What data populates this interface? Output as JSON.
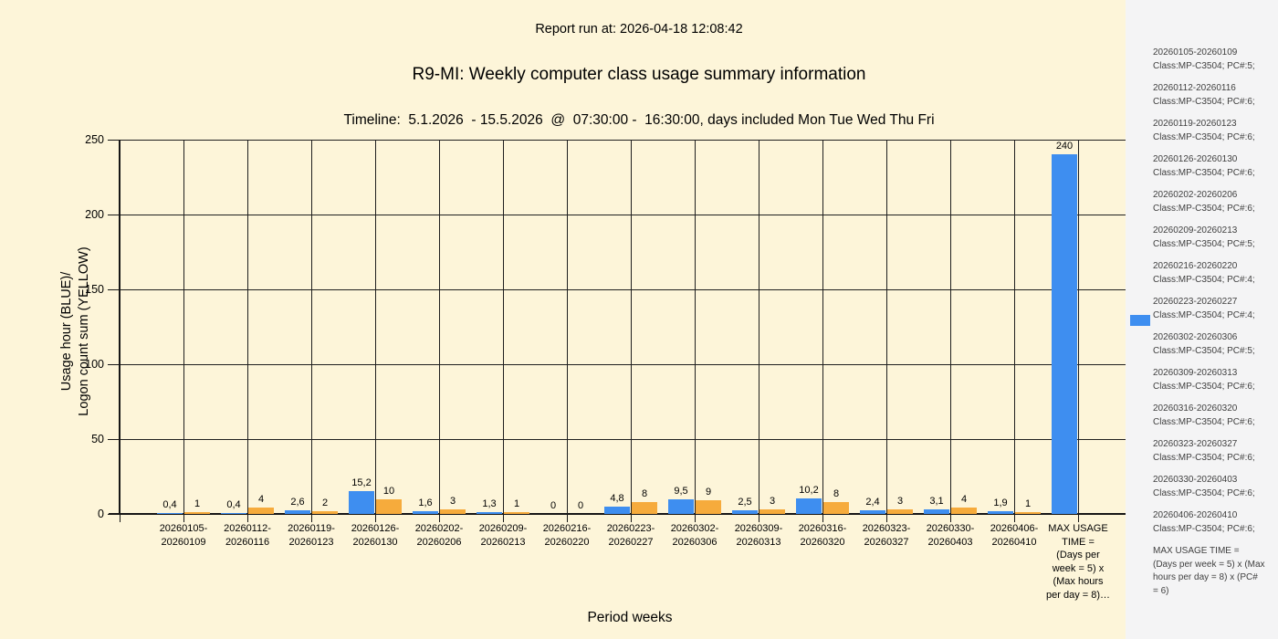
{
  "header": {
    "report_run": "Report run at: 2026-04-18 12:08:42",
    "title": "R9-MI: Weekly computer class usage summary information",
    "timeline": "Timeline:  5.1.2026  - 15.5.2026  @  07:30:00 -  16:30:00, days included Mon Tue Wed Thu Fri"
  },
  "colors": {
    "usage_blue": "#3E8EF0",
    "logon_yellow": "#F6AB3C",
    "chart_background": "#FDF5D9",
    "sidebar_background": "#F4F4F5",
    "gridline": "#1F1F1F"
  },
  "y_axis": {
    "title_line1": "Usage hour (BLUE)/",
    "title_line2": "Logon count sum (YELLOW)",
    "ticks": [
      0,
      50,
      100,
      150,
      200,
      250
    ]
  },
  "x_axis": {
    "title": "Period weeks"
  },
  "chart_data": {
    "type": "bar",
    "title": "R9-MI: Weekly computer class usage summary information",
    "subtitle": "Timeline:  5.1.2026  - 15.5.2026  @  07:30:00 -  16:30:00, days included Mon Tue Wed Thu Fri",
    "xlabel": "Period weeks",
    "ylabel": "Usage hour (BLUE)/ Logon count sum (YELLOW)",
    "ylim": [
      0,
      250
    ],
    "y_ticks": [
      0,
      50,
      100,
      150,
      200,
      250
    ],
    "grid": true,
    "legend_position": "right",
    "series": [
      {
        "name": "Usage hour",
        "color": "#3E8EF0",
        "values": [
          0.4,
          0.4,
          2.6,
          15.2,
          1.6,
          1.3,
          0,
          4.8,
          9.5,
          2.5,
          10.2,
          2.4,
          3.1,
          1.9,
          240
        ]
      },
      {
        "name": "Logon count sum",
        "color": "#F6AB3C",
        "values": [
          1,
          4,
          2,
          10,
          3,
          1,
          0,
          8,
          9,
          3,
          8,
          3,
          4,
          1,
          null
        ]
      }
    ],
    "categories": [
      {
        "range": "20260105-20260109",
        "label_lines": [
          "20260105-",
          "20260109"
        ],
        "usage_hour": 0.4,
        "usage_label": "0,4",
        "logon_count": 1,
        "logon_label": "1"
      },
      {
        "range": "20260112-20260116",
        "label_lines": [
          "20260112-",
          "20260116"
        ],
        "usage_hour": 0.4,
        "usage_label": "0,4",
        "logon_count": 4,
        "logon_label": "4"
      },
      {
        "range": "20260119-20260123",
        "label_lines": [
          "20260119-",
          "20260123"
        ],
        "usage_hour": 2.6,
        "usage_label": "2,6",
        "logon_count": 2,
        "logon_label": "2"
      },
      {
        "range": "20260126-20260130",
        "label_lines": [
          "20260126-",
          "20260130"
        ],
        "usage_hour": 15.2,
        "usage_label": "15,2",
        "logon_count": 10,
        "logon_label": "10"
      },
      {
        "range": "20260202-20260206",
        "label_lines": [
          "20260202-",
          "20260206"
        ],
        "usage_hour": 1.6,
        "usage_label": "1,6",
        "logon_count": 3,
        "logon_label": "3"
      },
      {
        "range": "20260209-20260213",
        "label_lines": [
          "20260209-",
          "20260213"
        ],
        "usage_hour": 1.3,
        "usage_label": "1,3",
        "logon_count": 1,
        "logon_label": "1"
      },
      {
        "range": "20260216-20260220",
        "label_lines": [
          "20260216-",
          "20260220"
        ],
        "usage_hour": 0,
        "usage_label": "0",
        "logon_count": 0,
        "logon_label": "0"
      },
      {
        "range": "20260223-20260227",
        "label_lines": [
          "20260223-",
          "20260227"
        ],
        "usage_hour": 4.8,
        "usage_label": "4,8",
        "logon_count": 8,
        "logon_label": "8"
      },
      {
        "range": "20260302-20260306",
        "label_lines": [
          "20260302-",
          "20260306"
        ],
        "usage_hour": 9.5,
        "usage_label": "9,5",
        "logon_count": 9,
        "logon_label": "9"
      },
      {
        "range": "20260309-20260313",
        "label_lines": [
          "20260309-",
          "20260313"
        ],
        "usage_hour": 2.5,
        "usage_label": "2,5",
        "logon_count": 3,
        "logon_label": "3"
      },
      {
        "range": "20260316-20260320",
        "label_lines": [
          "20260316-",
          "20260320"
        ],
        "usage_hour": 10.2,
        "usage_label": "10,2",
        "logon_count": 8,
        "logon_label": "8"
      },
      {
        "range": "20260323-20260327",
        "label_lines": [
          "20260323-",
          "20260327"
        ],
        "usage_hour": 2.4,
        "usage_label": "2,4",
        "logon_count": 3,
        "logon_label": "3"
      },
      {
        "range": "20260330-20260403",
        "label_lines": [
          "20260330-",
          "20260403"
        ],
        "usage_hour": 3.1,
        "usage_label": "3,1",
        "logon_count": 4,
        "logon_label": "4"
      },
      {
        "range": "20260406-20260410",
        "label_lines": [
          "20260406-",
          "20260410"
        ],
        "usage_hour": 1.9,
        "usage_label": "1,9",
        "logon_count": 1,
        "logon_label": "1"
      },
      {
        "range": "MAX USAGE TIME = (Days per week = 5) x (Max hours per day = 8)…",
        "label_lines": [
          "MAX USAGE",
          "TIME =",
          "(Days per",
          "week = 5) x",
          "(Max hours",
          "per day = 8)…"
        ],
        "usage_hour": 240,
        "usage_label": "240",
        "logon_count": null,
        "logon_label": null
      }
    ]
  },
  "sidebar": {
    "legend_marker_color": "#3E8EF0",
    "entries": [
      {
        "lines": [
          "20260105-20260109",
          "Class:MP-C3504; PC#:5;"
        ]
      },
      {
        "lines": [
          "20260112-20260116",
          "Class:MP-C3504; PC#:6;"
        ]
      },
      {
        "lines": [
          "20260119-20260123",
          "Class:MP-C3504; PC#:6;"
        ]
      },
      {
        "lines": [
          "20260126-20260130",
          "Class:MP-C3504; PC#:6;"
        ]
      },
      {
        "lines": [
          "20260202-20260206",
          "Class:MP-C3504; PC#:6;"
        ]
      },
      {
        "lines": [
          "20260209-20260213",
          "Class:MP-C3504; PC#:5;"
        ]
      },
      {
        "lines": [
          "20260216-20260220",
          "Class:MP-C3504; PC#:4;"
        ]
      },
      {
        "lines": [
          "20260223-20260227",
          "Class:MP-C3504; PC#:4;"
        ]
      },
      {
        "lines": [
          "20260302-20260306",
          "Class:MP-C3504; PC#:5;"
        ]
      },
      {
        "lines": [
          "20260309-20260313",
          "Class:MP-C3504; PC#:6;"
        ]
      },
      {
        "lines": [
          "20260316-20260320",
          "Class:MP-C3504; PC#:6;"
        ]
      },
      {
        "lines": [
          "20260323-20260327",
          "Class:MP-C3504; PC#:6;"
        ]
      },
      {
        "lines": [
          "20260330-20260403",
          "Class:MP-C3504; PC#:6;"
        ]
      },
      {
        "lines": [
          "20260406-20260410",
          "Class:MP-C3504; PC#:6;"
        ]
      },
      {
        "lines": [
          "MAX USAGE TIME =",
          " (Days per week = 5) x (Max",
          "hours per day = 8) x (PC#",
          "= 6)"
        ]
      }
    ]
  }
}
